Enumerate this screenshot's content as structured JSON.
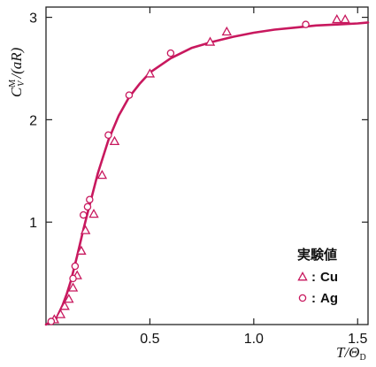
{
  "chart_data": {
    "type": "line",
    "xlabel": "T/Θ",
    "xlabel_sub": "D",
    "ylabel_main": "C",
    "ylabel_sup": "M",
    "ylabel_sub": "V",
    "ylabel_rest": "/(aR)",
    "xlim": [
      0,
      1.55
    ],
    "ylim": [
      0,
      3.1
    ],
    "x_ticks": [
      0.5,
      1.0,
      1.5
    ],
    "x_tick_labels": [
      "0.5",
      "1.0",
      "1.5"
    ],
    "y_ticks": [
      1,
      2,
      3
    ],
    "y_tick_labels": [
      "1",
      "2",
      "3"
    ],
    "grid": false,
    "legend_position": "bottom-right",
    "legend_title": "実験値",
    "curve_color": "#c8185e",
    "marker_color": "#c8185e",
    "series": [
      {
        "name": "Cu",
        "marker": "triangle",
        "x": [
          0.04,
          0.07,
          0.09,
          0.11,
          0.13,
          0.15,
          0.17,
          0.19,
          0.23,
          0.27,
          0.33,
          0.5,
          0.79,
          0.87,
          1.4,
          1.44
        ],
        "y": [
          0.05,
          0.1,
          0.18,
          0.25,
          0.36,
          0.48,
          0.72,
          0.92,
          1.08,
          1.46,
          1.79,
          2.45,
          2.76,
          2.86,
          2.98,
          2.98
        ]
      },
      {
        "name": "Ag",
        "marker": "circle",
        "x": [
          0.025,
          0.13,
          0.14,
          0.18,
          0.2,
          0.21,
          0.3,
          0.4,
          0.6,
          1.25
        ],
        "y": [
          0.03,
          0.45,
          0.57,
          1.07,
          1.15,
          1.22,
          1.85,
          2.24,
          2.65,
          2.93
        ]
      },
      {
        "name": "",
        "marker": "none",
        "x": [
          0.0,
          0.05,
          0.08,
          0.1,
          0.12,
          0.15,
          0.18,
          0.2,
          0.25,
          0.3,
          0.35,
          0.4,
          0.45,
          0.5,
          0.6,
          0.7,
          0.8,
          0.9,
          1.0,
          1.1,
          1.2,
          1.3,
          1.4,
          1.5,
          1.55
        ],
        "y": [
          0.0,
          0.06,
          0.19,
          0.3,
          0.43,
          0.67,
          0.93,
          1.09,
          1.48,
          1.8,
          2.04,
          2.22,
          2.35,
          2.46,
          2.6,
          2.7,
          2.76,
          2.81,
          2.85,
          2.88,
          2.9,
          2.92,
          2.93,
          2.94,
          2.95
        ]
      }
    ]
  }
}
